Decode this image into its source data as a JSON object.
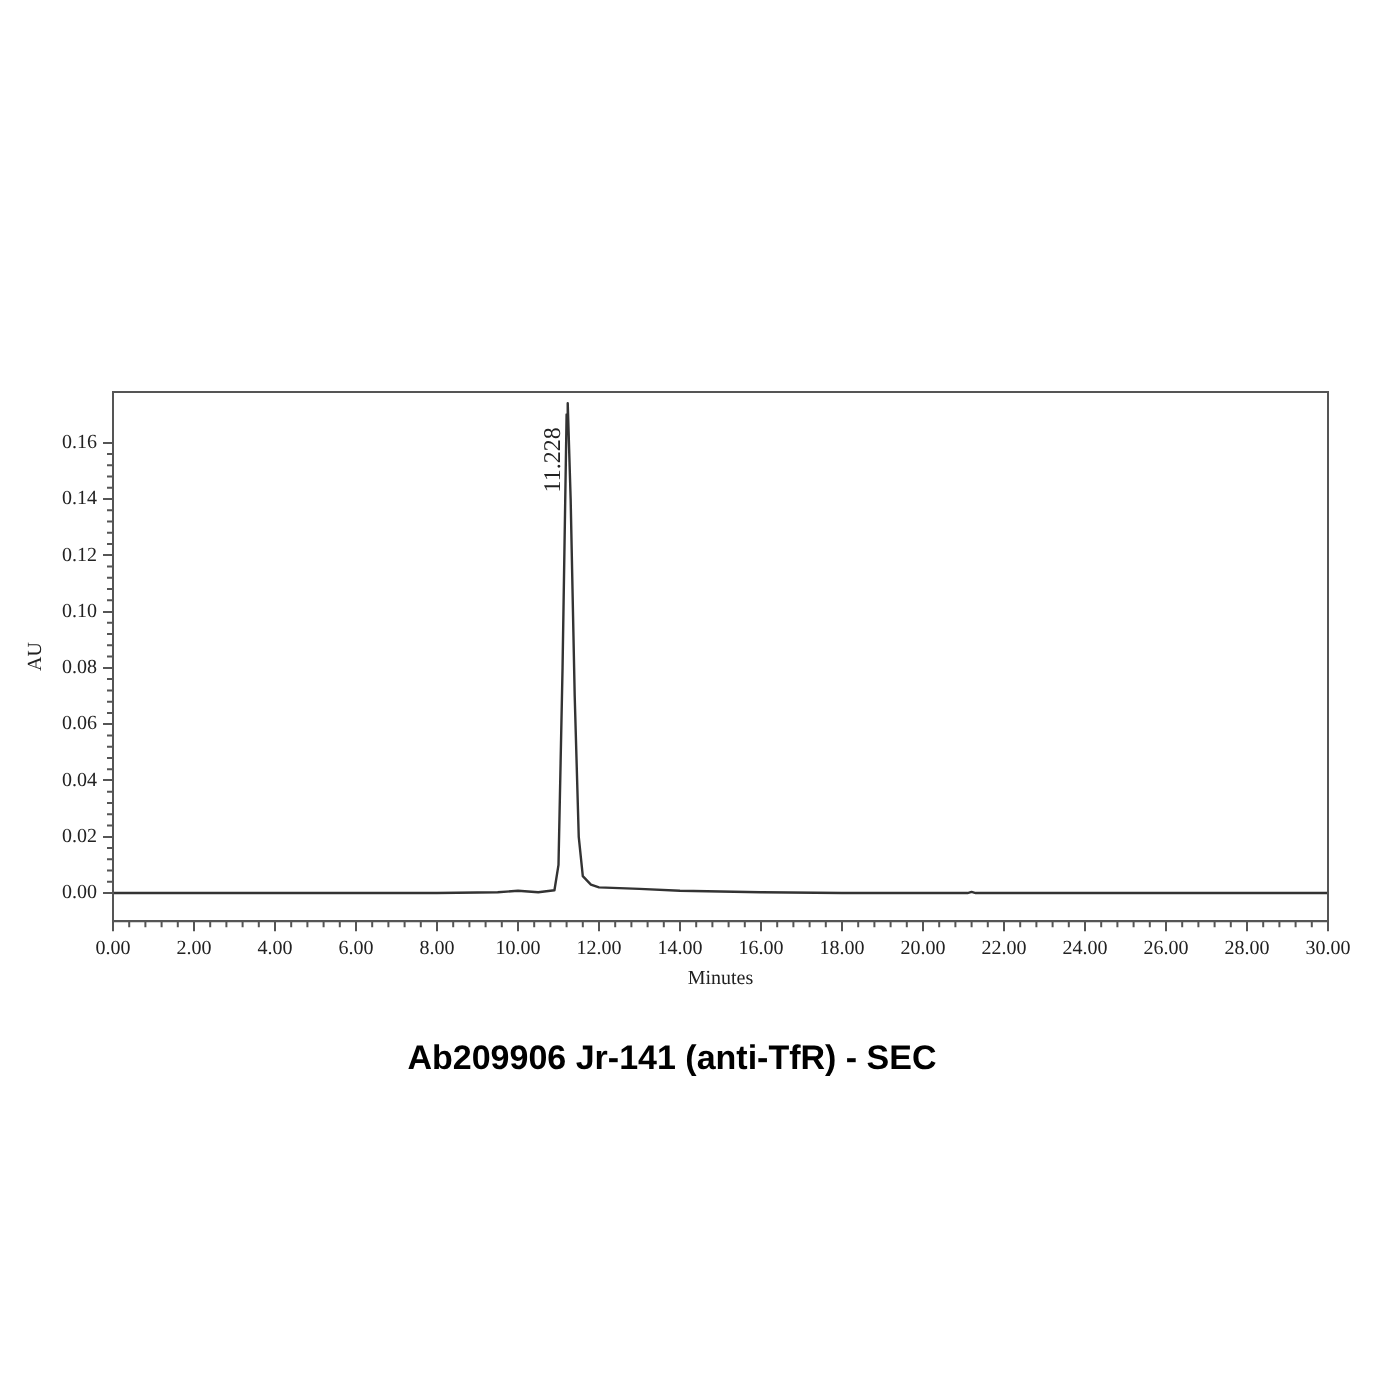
{
  "chart_data": {
    "type": "line",
    "title": "Ab209906 Jr-141 (anti-TfR) - SEC",
    "xlabel": "Minutes",
    "ylabel": "AU",
    "series": [
      {
        "color": "#333333",
        "x": [
          0,
          4,
          8,
          9.5,
          10,
          10.5,
          10.9,
          11.0,
          11.1,
          11.2,
          11.228,
          11.3,
          11.4,
          11.5,
          11.6,
          11.8,
          12,
          13,
          14,
          16,
          18,
          21.1,
          21.2,
          21.3,
          24,
          30
        ],
        "values": [
          0,
          0,
          0,
          0.0003,
          0.0008,
          0.0003,
          0.001,
          0.01,
          0.08,
          0.17,
          0.174,
          0.14,
          0.07,
          0.02,
          0.006,
          0.003,
          0.002,
          0.0015,
          0.0008,
          0.0003,
          0,
          0,
          0.0004,
          0,
          0,
          0
        ]
      }
    ],
    "xlim": [
      0,
      30
    ],
    "ylim": [
      -0.01,
      0.178
    ],
    "xticks": [
      {
        "value": 0,
        "label": "0.00"
      },
      {
        "value": 2,
        "label": "2.00"
      },
      {
        "value": 4,
        "label": "4.00"
      },
      {
        "value": 6,
        "label": "6.00"
      },
      {
        "value": 8,
        "label": "8.00"
      },
      {
        "value": 10,
        "label": "10.00"
      },
      {
        "value": 12,
        "label": "12.00"
      },
      {
        "value": 14,
        "label": "14.00"
      },
      {
        "value": 16,
        "label": "16.00"
      },
      {
        "value": 18,
        "label": "18.00"
      },
      {
        "value": 20,
        "label": "20.00"
      },
      {
        "value": 22,
        "label": "22.00"
      },
      {
        "value": 24,
        "label": "24.00"
      },
      {
        "value": 26,
        "label": "26.00"
      },
      {
        "value": 28,
        "label": "28.00"
      },
      {
        "value": 30,
        "label": "30.00"
      }
    ],
    "yticks": [
      {
        "value": 0,
        "label": "0.00"
      },
      0.02,
      0.04,
      0.06,
      0.08,
      {
        "value": 0.1,
        "label": "0.10"
      },
      0.12,
      0.14,
      0.16
    ],
    "annotations": [
      {
        "text": "11.228",
        "x": 11.228,
        "y": 0.174
      }
    ],
    "grid": false,
    "legend": false,
    "marker": "none",
    "line_style": "solid"
  }
}
